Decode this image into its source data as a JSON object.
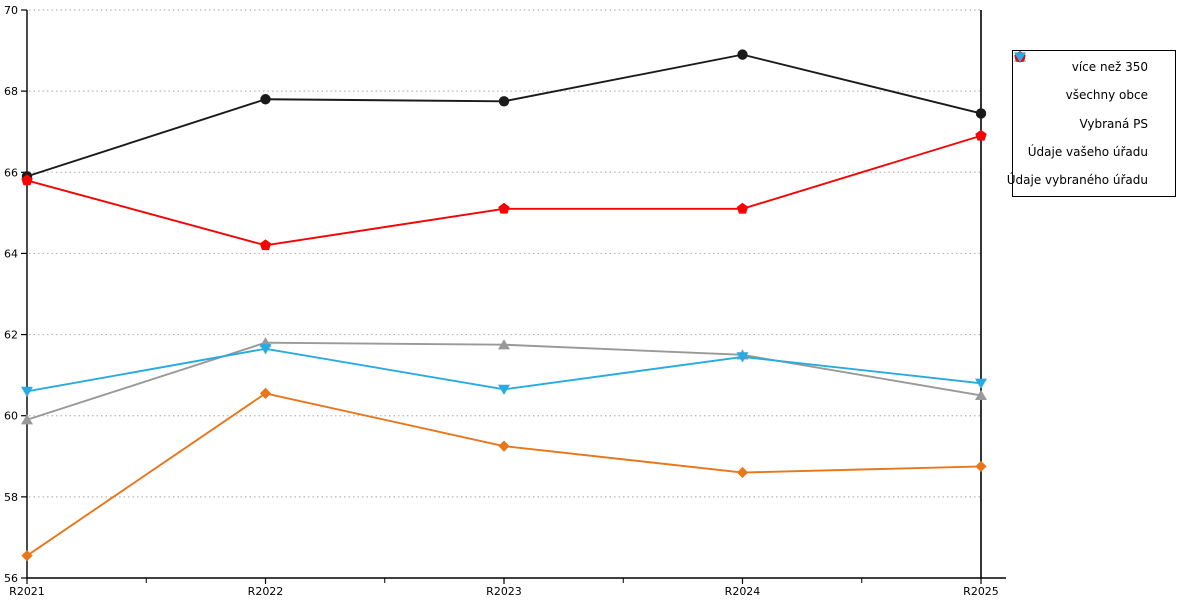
{
  "chart_data": {
    "type": "line",
    "categories": [
      "R2021",
      "R2022",
      "R2023",
      "R2024",
      "R2025"
    ],
    "series": [
      {
        "name": "více než 350",
        "color": "#E8761B",
        "marker": "diamond",
        "values": [
          56.55,
          60.55,
          59.25,
          58.6,
          58.75
        ]
      },
      {
        "name": "všechny obce",
        "color": "#1A1A1A",
        "marker": "circle",
        "values": [
          65.9,
          67.8,
          67.75,
          68.9,
          67.45
        ]
      },
      {
        "name": "Vybraná PS",
        "color": "#999999",
        "marker": "triangle-up",
        "values": [
          59.9,
          61.8,
          61.75,
          61.5,
          60.5
        ]
      },
      {
        "name": "Údaje vašeho úřadu",
        "color": "#F40404",
        "marker": "pentagon",
        "values": [
          65.8,
          64.2,
          65.1,
          65.1,
          66.9
        ]
      },
      {
        "name": "Údaje vybraného úřadu",
        "color": "#29ABE2",
        "marker": "triangle-down",
        "values": [
          60.6,
          61.65,
          60.65,
          61.45,
          60.8
        ]
      }
    ],
    "title": "",
    "xlabel": "",
    "ylabel": "",
    "ylim": [
      56,
      70
    ],
    "ytick_step": 2,
    "grid": "horizontal dotted at every 2 units",
    "x_minor_ticks": true,
    "highlight_vline_at": "R2025",
    "legend_position": "top-right-outside",
    "axis_color": "#000000",
    "gridline_color": "#B8B8B8"
  }
}
